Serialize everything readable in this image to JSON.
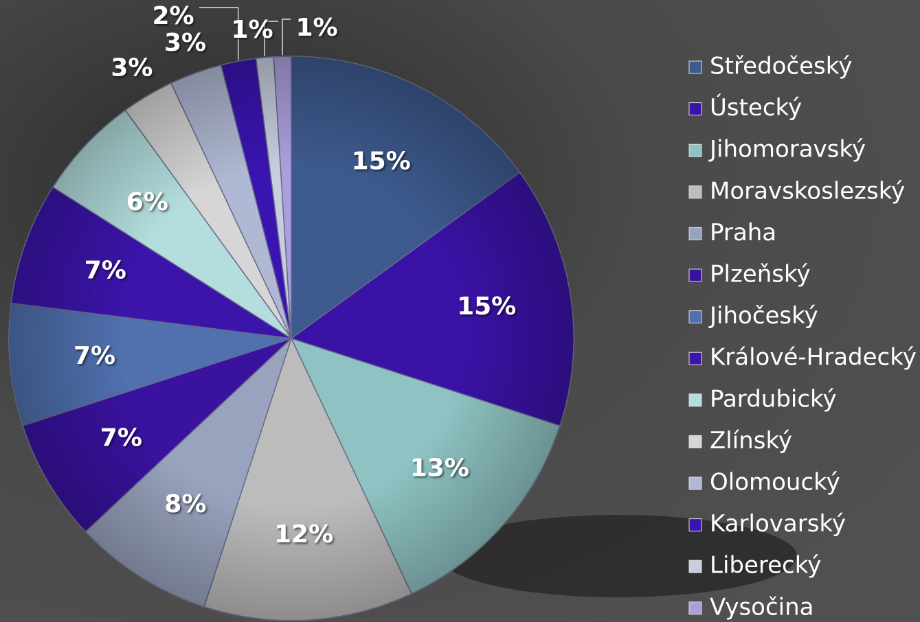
{
  "chart_data": {
    "type": "pie",
    "categories": [
      "Středočeský",
      "Ústecký",
      "Jihomoravský",
      "Moravskoslezský",
      "Praha",
      "Plzeňský",
      "Jihočeský",
      "Králové-Hradecký",
      "Pardubický",
      "Zlínský",
      "Olomoucký",
      "Karlovarský",
      "Liberecký",
      "Vysočina"
    ],
    "values": [
      15,
      15,
      13,
      12,
      8,
      7,
      7,
      7,
      6,
      3,
      3,
      2,
      1,
      1
    ],
    "value_labels": [
      "15%",
      "15%",
      "13%",
      "12%",
      "8%",
      "7%",
      "7%",
      "7%",
      "6%",
      "3%",
      "3%",
      "2%",
      "1%",
      "1%"
    ],
    "colors": [
      "#3e5a8e",
      "#3a12a6",
      "#8fc3c3",
      "#bcbcbc",
      "#99a3bd",
      "#3912a0",
      "#5070ae",
      "#3b14aa",
      "#b4dede",
      "#d6d6d6",
      "#b0b9d3",
      "#3a14b0",
      "#c6cedf",
      "#ad9fdd"
    ],
    "legend": "right"
  }
}
